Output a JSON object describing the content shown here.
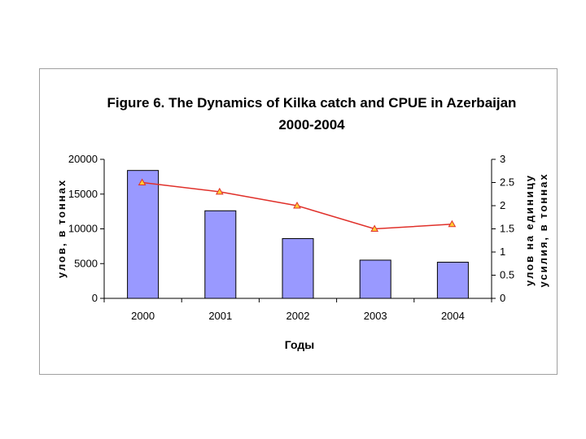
{
  "chart_data": {
    "type": "bar",
    "title_lines": [
      "Figure 6. The Dynamics of Kilka catch and CPUE in Azerbaijan",
      "2000-2004"
    ],
    "categories": [
      "2000",
      "2001",
      "2002",
      "2003",
      "2004"
    ],
    "xlabel": "Годы",
    "ylabel_left": "улов, в тоннах",
    "ylabel_right_lines": [
      "улов на единицу",
      "усилия, в тоннах"
    ],
    "ylim_left": [
      0,
      20000
    ],
    "yticks_left": [
      "0",
      "5000",
      "10000",
      "15000",
      "20000"
    ],
    "ylim_right": [
      0,
      3
    ],
    "yticks_right": [
      "0",
      "0.5",
      "1",
      "1.5",
      "2",
      "2.5",
      "3"
    ],
    "grid": false,
    "series": [
      {
        "kind": "bar",
        "axis": "left",
        "values": [
          18400,
          12600,
          8600,
          5500,
          5200
        ],
        "color": "#9999ff"
      },
      {
        "kind": "line",
        "axis": "right",
        "values": [
          2.5,
          2.3,
          2.0,
          1.5,
          1.6
        ],
        "color": "#e0302a",
        "marker_fill": "#ffcc33"
      }
    ]
  }
}
